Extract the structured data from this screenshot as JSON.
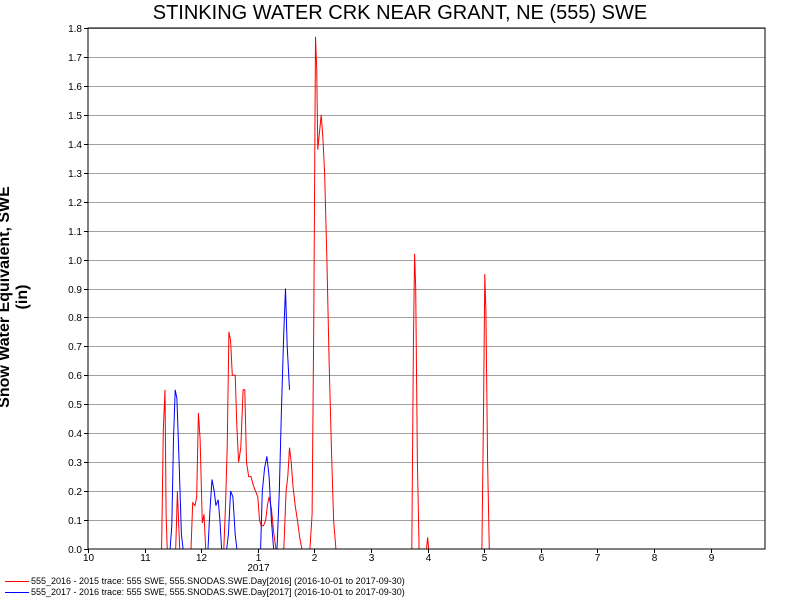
{
  "chart_data": {
    "type": "line",
    "title": "STINKING WATER CRK NEAR GRANT, NE (555) SWE",
    "xlabel": "",
    "ylabel": "Snow Water Equivalent, SWE (in)",
    "ylim": [
      0,
      1.8
    ],
    "xlim": [
      10,
      10.98
    ],
    "grid": true,
    "x_tick_labels": [
      "10",
      "11",
      "12",
      "1",
      "2",
      "3",
      "4",
      "5",
      "6",
      "7",
      "8",
      "9"
    ],
    "x_tick_values": [
      10,
      11,
      12,
      13,
      14,
      15,
      16,
      17,
      18,
      19,
      20,
      21
    ],
    "year_label": "2017",
    "y_tick_labels": [
      "0.0",
      "0.1",
      "0.2",
      "0.3",
      "0.4",
      "0.5",
      "0.6",
      "0.7",
      "0.8",
      "0.9",
      "1.0",
      "1.1",
      "1.2",
      "1.3",
      "1.4",
      "1.5",
      "1.6",
      "1.7",
      "1.8"
    ],
    "series": [
      {
        "name": "555_2016 - 2015 trace: 555 SWE, 555.SNODAS.SWE.Day[2016] (2016-10-01 to 2017-09-30)",
        "color": "#ff0000",
        "points": [
          [
            11.3,
            0.0
          ],
          [
            11.33,
            0.41
          ],
          [
            11.36,
            0.55
          ],
          [
            11.38,
            0.12
          ],
          [
            11.4,
            0.0
          ],
          [
            11.55,
            0.0
          ],
          [
            11.58,
            0.2
          ],
          [
            11.62,
            0.0
          ],
          [
            11.82,
            0.0
          ],
          [
            11.85,
            0.16
          ],
          [
            11.89,
            0.15
          ],
          [
            11.92,
            0.18
          ],
          [
            11.95,
            0.47
          ],
          [
            11.98,
            0.38
          ],
          [
            12.02,
            0.09
          ],
          [
            12.05,
            0.12
          ],
          [
            12.08,
            0.0
          ],
          [
            12.4,
            0.0
          ],
          [
            12.43,
            0.15
          ],
          [
            12.46,
            0.35
          ],
          [
            12.49,
            0.75
          ],
          [
            12.52,
            0.72
          ],
          [
            12.55,
            0.6
          ],
          [
            12.6,
            0.6
          ],
          [
            12.63,
            0.42
          ],
          [
            12.66,
            0.3
          ],
          [
            12.7,
            0.35
          ],
          [
            12.74,
            0.55
          ],
          [
            12.77,
            0.55
          ],
          [
            12.8,
            0.3
          ],
          [
            12.84,
            0.25
          ],
          [
            12.88,
            0.25
          ],
          [
            12.92,
            0.22
          ],
          [
            12.96,
            0.2
          ],
          [
            13.0,
            0.18
          ],
          [
            13.03,
            0.1
          ],
          [
            13.06,
            0.08
          ],
          [
            13.1,
            0.08
          ],
          [
            13.14,
            0.1
          ],
          [
            13.17,
            0.15
          ],
          [
            13.2,
            0.18
          ],
          [
            13.24,
            0.14
          ],
          [
            13.28,
            0.06
          ],
          [
            13.32,
            0.0
          ],
          [
            13.46,
            0.0
          ],
          [
            13.5,
            0.2
          ],
          [
            13.53,
            0.25
          ],
          [
            13.56,
            0.35
          ],
          [
            13.59,
            0.3
          ],
          [
            13.62,
            0.22
          ],
          [
            13.66,
            0.15
          ],
          [
            13.7,
            0.1
          ],
          [
            13.74,
            0.04
          ],
          [
            13.78,
            0.0
          ],
          [
            13.92,
            0.0
          ],
          [
            13.96,
            0.12
          ],
          [
            13.99,
            0.8
          ],
          [
            14.02,
            1.77
          ],
          [
            14.04,
            1.66
          ],
          [
            14.06,
            1.38
          ],
          [
            14.09,
            1.44
          ],
          [
            14.12,
            1.5
          ],
          [
            14.15,
            1.42
          ],
          [
            14.18,
            1.3
          ],
          [
            14.22,
            1.0
          ],
          [
            14.26,
            0.65
          ],
          [
            14.3,
            0.35
          ],
          [
            14.34,
            0.1
          ],
          [
            14.38,
            0.0
          ],
          [
            15.72,
            0.0
          ],
          [
            15.75,
            0.7
          ],
          [
            15.77,
            1.02
          ],
          [
            15.79,
            0.9
          ],
          [
            15.82,
            0.3
          ],
          [
            15.85,
            0.0
          ],
          [
            15.98,
            0.0
          ],
          [
            16.0,
            0.04
          ],
          [
            16.02,
            0.0
          ],
          [
            16.96,
            0.0
          ],
          [
            16.99,
            0.5
          ],
          [
            17.01,
            0.95
          ],
          [
            17.03,
            0.82
          ],
          [
            17.06,
            0.3
          ],
          [
            17.09,
            0.0
          ]
        ]
      },
      {
        "name": "555_2017 - 2016 trace: 555 SWE, 555.SNODAS.SWE.Day[2017] (2016-10-01 to 2017-09-30)",
        "color": "#0000ff",
        "points": [
          [
            11.45,
            0.0
          ],
          [
            11.48,
            0.08
          ],
          [
            11.51,
            0.38
          ],
          [
            11.54,
            0.55
          ],
          [
            11.57,
            0.52
          ],
          [
            11.61,
            0.3
          ],
          [
            11.65,
            0.05
          ],
          [
            11.68,
            0.0
          ],
          [
            12.12,
            0.0
          ],
          [
            12.15,
            0.12
          ],
          [
            12.19,
            0.24
          ],
          [
            12.23,
            0.2
          ],
          [
            12.26,
            0.15
          ],
          [
            12.3,
            0.17
          ],
          [
            12.33,
            0.1
          ],
          [
            12.36,
            0.0
          ],
          [
            12.45,
            0.0
          ],
          [
            12.48,
            0.05
          ],
          [
            12.52,
            0.2
          ],
          [
            12.56,
            0.18
          ],
          [
            12.6,
            0.05
          ],
          [
            12.63,
            0.0
          ],
          [
            13.05,
            0.0
          ],
          [
            13.08,
            0.2
          ],
          [
            13.12,
            0.28
          ],
          [
            13.16,
            0.32
          ],
          [
            13.2,
            0.25
          ],
          [
            13.24,
            0.1
          ],
          [
            13.28,
            0.0
          ],
          [
            13.34,
            0.0
          ],
          [
            13.38,
            0.2
          ],
          [
            13.42,
            0.5
          ],
          [
            13.46,
            0.75
          ],
          [
            13.49,
            0.9
          ],
          [
            13.52,
            0.7
          ],
          [
            13.56,
            0.55
          ]
        ]
      }
    ],
    "legend_position": "bottom-left"
  }
}
